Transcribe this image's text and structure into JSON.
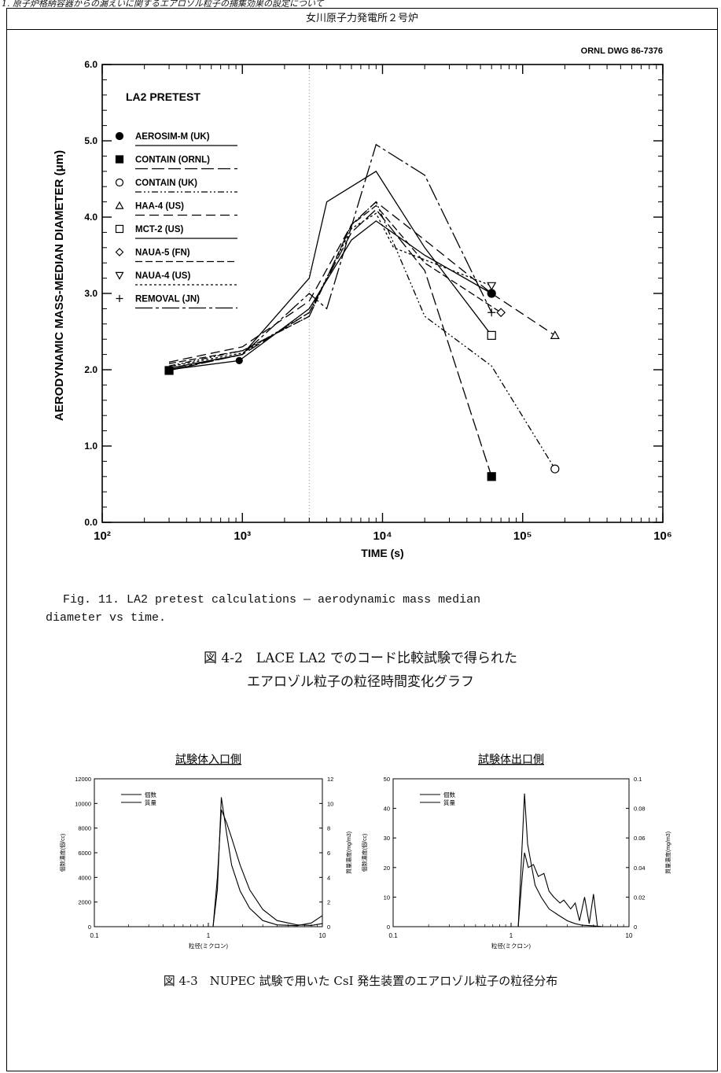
{
  "page_header": "1. 原子炉格納容器からの漏えいに関するエアロゾル粒子の捕集効果の設定について",
  "frame_title": "女川原子力発電所２号炉",
  "figure_main": {
    "drawing_no": "ORNL DWG 86-7376",
    "chart_data": {
      "type": "line",
      "title": "LA2 PRETEST",
      "xlabel": "TIME (s)",
      "ylabel": "AERODYNAMIC MASS-MEDIAN DIAMETER (μm)",
      "x_scale": "log",
      "xlim": [
        100,
        1000000
      ],
      "ylim": [
        0,
        6
      ],
      "x_ticks": [
        "10²",
        "10³",
        "10⁴",
        "10⁵",
        "10⁶"
      ],
      "y_ticks": [
        "0.0",
        "1.0",
        "2.0",
        "3.0",
        "4.0",
        "5.0",
        "6.0"
      ],
      "legend_position": "top-left",
      "series": [
        {
          "name": "AEROSIM-M (UK)",
          "marker": "filled-circle",
          "dash": "",
          "points": [
            [
              300,
              2.0
            ],
            [
              950,
              2.12
            ],
            [
              3000,
              2.8
            ],
            [
              6000,
              3.7
            ],
            [
              9000,
              3.95
            ],
            [
              20000,
              3.5
            ],
            [
              60000,
              3.0
            ]
          ]
        },
        {
          "name": "CONTAIN (ORNL)",
          "marker": "filled-square",
          "dash": "16,5",
          "points": [
            [
              300,
              1.99
            ],
            [
              1000,
              2.2
            ],
            [
              3000,
              2.75
            ],
            [
              6000,
              3.8
            ],
            [
              9000,
              4.1
            ],
            [
              20000,
              3.3
            ],
            [
              60000,
              0.6
            ]
          ]
        },
        {
          "name": "CONTAIN (UK)",
          "marker": "open-circle",
          "dash": "8,3,2,3,2,3",
          "points": [
            [
              300,
              2.05
            ],
            [
              1000,
              2.25
            ],
            [
              3000,
              2.7
            ],
            [
              6000,
              3.9
            ],
            [
              9000,
              4.2
            ],
            [
              20000,
              2.7
            ],
            [
              60000,
              2.05
            ],
            [
              170000,
              0.7
            ]
          ]
        },
        {
          "name": "HAA-4 (US)",
          "marker": "open-triangle",
          "dash": "12,6",
          "points": [
            [
              300,
              2.1
            ],
            [
              1000,
              2.3
            ],
            [
              3000,
              2.9
            ],
            [
              6000,
              3.9
            ],
            [
              9000,
              4.2
            ],
            [
              20000,
              3.7
            ],
            [
              60000,
              3.0
            ],
            [
              170000,
              2.45
            ]
          ]
        },
        {
          "name": "MCT-2 (US)",
          "marker": "open-square",
          "dash": "",
          "points": [
            [
              300,
              2.02
            ],
            [
              1000,
              2.2
            ],
            [
              3000,
              3.2
            ],
            [
              4000,
              4.2
            ],
            [
              9000,
              4.6
            ],
            [
              20000,
              3.6
            ],
            [
              60000,
              2.45
            ]
          ]
        },
        {
          "name": "NAUA-5 (FN)",
          "marker": "open-diamond",
          "dash": "9,4",
          "points": [
            [
              300,
              2.08
            ],
            [
              1000,
              2.25
            ],
            [
              3000,
              2.7
            ],
            [
              6000,
              3.9
            ],
            [
              9000,
              4.15
            ],
            [
              20000,
              3.4
            ],
            [
              70000,
              2.75
            ]
          ]
        },
        {
          "name": "NAUA-4 (US)",
          "marker": "open-down-triangle",
          "dash": "3,3",
          "points": [
            [
              300,
              2.04
            ],
            [
              1000,
              2.22
            ],
            [
              3000,
              2.75
            ],
            [
              6000,
              3.85
            ],
            [
              9000,
              4.05
            ],
            [
              12000,
              3.6
            ],
            [
              60000,
              3.1
            ]
          ]
        },
        {
          "name": "REMOVAL (JN)",
          "marker": "plus",
          "dash": "22,4,4,4",
          "points": [
            [
              300,
              2.0
            ],
            [
              1000,
              2.2
            ],
            [
              3000,
              3.0
            ],
            [
              4000,
              2.8
            ],
            [
              9000,
              4.95
            ],
            [
              20000,
              4.55
            ],
            [
              60000,
              2.75
            ]
          ]
        }
      ]
    }
  },
  "caption_en_line1": "Fig. 11.  LA2 pretest calculations — aerodynamic mass median",
  "caption_en_line2": "diameter vs time.",
  "caption_jp_line1": "図 4-2　LACE LA2 でのコード比較試験で得られた",
  "caption_jp_line2": "エアロゾル粒子の粒径時間変化グラフ",
  "figure_inlet": {
    "chart_data": {
      "type": "line",
      "title": "試験体入口側",
      "xlabel": "粒径(ミクロン)",
      "ylabel": "個数濃度(個/cc)",
      "ylabel_right": "質量濃度(mg/m3)",
      "x_scale": "log",
      "xlim": [
        0.1,
        10
      ],
      "ylim": [
        0,
        12000
      ],
      "ylim_right": [
        0,
        12
      ],
      "x_ticks": [
        "0.1",
        "1",
        "10"
      ],
      "y_ticks": [
        "0",
        "2000",
        "4000",
        "6000",
        "8000",
        "10000",
        "12000"
      ],
      "y_ticks_right": [
        "0",
        "2",
        "4",
        "6",
        "8",
        "10",
        "12"
      ],
      "legend_position": "top-left",
      "series": [
        {
          "name": "個数",
          "x": [
            0.1,
            1.1,
            1.2,
            1.3,
            1.45,
            1.6,
            1.9,
            2.3,
            3,
            4,
            6,
            8,
            10
          ],
          "values": [
            0,
            0,
            3000,
            10500,
            7500,
            5000,
            2900,
            1500,
            500,
            150,
            80,
            300,
            900
          ]
        },
        {
          "name": "質量",
          "x": [
            0.1,
            1.1,
            1.2,
            1.3,
            1.45,
            1.6,
            1.9,
            2.3,
            3,
            4,
            6,
            8,
            10
          ],
          "values": [
            0,
            0,
            4000,
            9500,
            8400,
            7200,
            5000,
            3000,
            1400,
            500,
            150,
            100,
            250
          ]
        }
      ]
    }
  },
  "figure_outlet": {
    "chart_data": {
      "type": "line",
      "title": "試験体出口側",
      "xlabel": "粒径(ミクロン)",
      "ylabel": "個数濃度(個/cc)",
      "ylabel_right": "質量濃度(mg/m3)",
      "x_scale": "log",
      "xlim": [
        0.1,
        10
      ],
      "ylim": [
        0,
        50
      ],
      "ylim_right": [
        0,
        0.1
      ],
      "x_ticks": [
        "0.1",
        "1",
        "10"
      ],
      "y_ticks": [
        "0",
        "10",
        "20",
        "30",
        "40",
        "50"
      ],
      "y_ticks_right": [
        "0",
        "0.02",
        "0.04",
        "0.06",
        "0.08",
        "0.1"
      ],
      "legend_position": "top-left",
      "series": [
        {
          "name": "個数",
          "x": [
            0.1,
            1.15,
            1.25,
            1.3,
            1.38,
            1.5,
            1.6,
            1.8,
            2.1,
            2.5,
            3,
            3.5,
            4,
            5,
            6
          ],
          "values": [
            0,
            0,
            30,
            45,
            28,
            20,
            14,
            10,
            6,
            4,
            2,
            1,
            0.5,
            0.3,
            0
          ]
        },
        {
          "name": "質量",
          "x": [
            0.1,
            1.15,
            1.25,
            1.3,
            1.4,
            1.55,
            1.7,
            1.9,
            2.1,
            2.3,
            2.6,
            2.8,
            3.2,
            3.5,
            3.8,
            4.2,
            4.6,
            5,
            5.4,
            6
          ],
          "values": [
            0,
            0,
            18,
            25,
            20,
            21,
            17,
            18,
            12,
            10,
            8,
            9,
            6,
            8,
            2,
            10,
            1,
            11,
            0,
            0
          ]
        }
      ]
    }
  },
  "caption_jp3": "図 4-3　NUPEC 試験で用いた CsI 発生装置のエアロゾル粒子の粒径分布"
}
